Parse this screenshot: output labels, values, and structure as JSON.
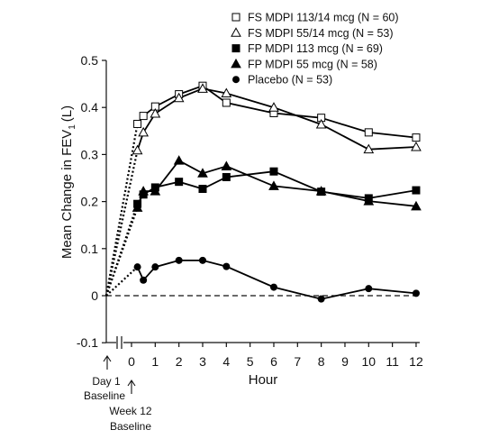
{
  "chart_data": {
    "type": "line",
    "title": "",
    "xlabel": "Hour",
    "ylabel": "Mean Change in FEV",
    "ylabel_subscript": "1",
    "ylabel_unit": "(L)",
    "xlim": [
      -1,
      12
    ],
    "ylim": [
      -0.1,
      0.5
    ],
    "x_ticks": [
      0,
      1,
      2,
      3,
      4,
      5,
      6,
      7,
      8,
      9,
      10,
      11,
      12
    ],
    "y_ticks": [
      -0.1,
      0,
      0.1,
      0.2,
      0.3,
      0.4,
      0.5
    ],
    "y_tick_labels": [
      "-0.1",
      "0",
      "0.1",
      "0.2",
      "0.3",
      "0.4",
      "0.5"
    ],
    "grid": false,
    "legend_position": "top-right",
    "zero_reference_line": "dashed",
    "baseline_annotations": {
      "day1_line1": "Day 1",
      "day1_line2": "Baseline",
      "week12_line1": "Week 12",
      "week12_line2": "Baseline"
    },
    "connector_from_origin": "dotted",
    "series": [
      {
        "name": "FS MDPI 113/14 mcg (N = 60)",
        "marker": "open-square",
        "x": [
          0.25,
          0.5,
          1,
          2,
          3,
          4,
          6,
          8,
          10,
          12
        ],
        "y": [
          0.365,
          0.382,
          0.402,
          0.428,
          0.446,
          0.41,
          0.388,
          0.378,
          0.347,
          0.336
        ]
      },
      {
        "name": "FS MDPI 55/14 mcg (N = 53)",
        "marker": "open-triangle",
        "x": [
          0.25,
          0.5,
          1,
          2,
          3,
          4,
          6,
          8,
          10,
          12
        ],
        "y": [
          0.309,
          0.347,
          0.387,
          0.42,
          0.44,
          0.43,
          0.4,
          0.364,
          0.311,
          0.316
        ]
      },
      {
        "name": "FP MDPI 113 mcg (N = 69)",
        "marker": "filled-square",
        "x": [
          0.25,
          0.5,
          1,
          2,
          3,
          4,
          6,
          8,
          10,
          12
        ],
        "y": [
          0.195,
          0.215,
          0.23,
          0.242,
          0.227,
          0.252,
          0.264,
          0.221,
          0.207,
          0.224
        ]
      },
      {
        "name": "FP MDPI 55 mcg (N = 58)",
        "marker": "filled-triangle",
        "x": [
          0.25,
          0.5,
          1,
          2,
          3,
          4,
          6,
          8,
          10,
          12
        ],
        "y": [
          0.187,
          0.222,
          0.222,
          0.287,
          0.26,
          0.275,
          0.233,
          0.222,
          0.201,
          0.19
        ]
      },
      {
        "name": "Placebo (N = 53)",
        "marker": "filled-circle",
        "x": [
          0.25,
          0.5,
          1,
          2,
          3,
          4,
          6,
          8,
          10,
          12
        ],
        "y": [
          0.061,
          0.033,
          0.061,
          0.075,
          0.075,
          0.062,
          0.018,
          -0.007,
          0.015,
          0.005
        ]
      }
    ]
  }
}
